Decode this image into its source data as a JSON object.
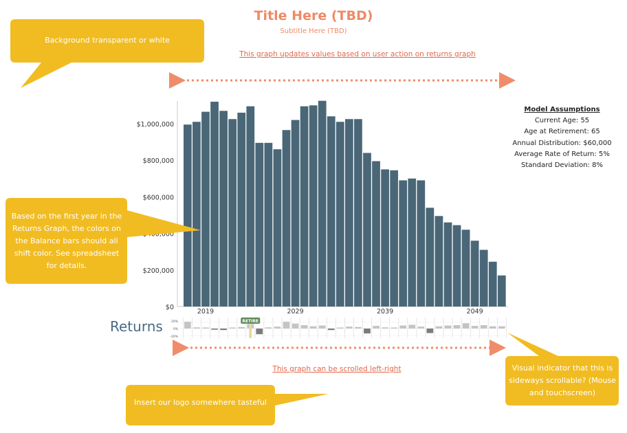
{
  "title": "Title Here (TBD)",
  "subtitle": "Subtitle Here (TBD)",
  "notes": {
    "top": "This graph updates values based on user action on returns graph",
    "bottom": "This graph can be scrolled left-right"
  },
  "assumptions": {
    "heading": "Model Assumptions",
    "lines": [
      "Current Age: 55",
      "Age at Retirement: 65",
      "Annual Distribution: $60,000",
      "Average Rate of Return: 5%",
      "Standard Deviation: 8%"
    ]
  },
  "returns_label": "Returns",
  "retire_tag": "RETIRE",
  "callouts": {
    "background": "Background transparent or white",
    "colors": "Based on the first year in the Returns Graph, the colors on the Balance bars should all shift color.  See spreadsheet for details.",
    "scroll": "Visual indicator that this is sideways scrollable? (Mouse and touchscreen)",
    "logo": "Insert our logo somewhere tasteful"
  },
  "colors": {
    "bar": "#4a6778",
    "accent": "#ee8a67",
    "callout": "#f1bc22",
    "return_pos": "#c4c4c4",
    "return_neg": "#7c7c7c",
    "retire": "#5e8a5a"
  },
  "chart_data": [
    {
      "type": "bar",
      "title": "",
      "xlabel": "",
      "ylabel": "",
      "ylim": [
        0,
        1150000
      ],
      "yticks": [
        0,
        200000,
        400000,
        600000,
        800000,
        1000000
      ],
      "ytick_labels": [
        "$0",
        "$200,000",
        "$400,000",
        "$600,000",
        "$800,000",
        "$1,000,000"
      ],
      "xtick_labels": [
        {
          "year": 2019,
          "label": "2019"
        },
        {
          "year": 2029,
          "label": "2029"
        },
        {
          "year": 2039,
          "label": "2039"
        },
        {
          "year": 2049,
          "label": "2049"
        }
      ],
      "x": [
        2017,
        2018,
        2019,
        2020,
        2021,
        2022,
        2023,
        2024,
        2025,
        2026,
        2027,
        2028,
        2029,
        2030,
        2031,
        2032,
        2033,
        2034,
        2035,
        2036,
        2037,
        2038,
        2039,
        2040,
        2041,
        2042,
        2043,
        2044,
        2045,
        2046,
        2047,
        2048,
        2049,
        2050,
        2051,
        2052
      ],
      "values": [
        995000,
        1010000,
        1065000,
        1120000,
        1070000,
        1025000,
        1060000,
        1095000,
        895000,
        895000,
        860000,
        965000,
        1020000,
        1095000,
        1100000,
        1125000,
        1040000,
        1010000,
        1025000,
        1025000,
        840000,
        795000,
        750000,
        745000,
        690000,
        700000,
        690000,
        540000,
        495000,
        460000,
        445000,
        420000,
        360000,
        310000,
        245000,
        170000
      ]
    },
    {
      "type": "bar",
      "title": "Returns",
      "yticks": [
        20,
        0,
        -20
      ],
      "ytick_labels": [
        "20%",
        "0%",
        "-20%"
      ],
      "x": [
        2017,
        2018,
        2019,
        2020,
        2021,
        2022,
        2023,
        2024,
        2025,
        2026,
        2027,
        2028,
        2029,
        2030,
        2031,
        2032,
        2033,
        2034,
        2035,
        2036,
        2037,
        2038,
        2039,
        2040,
        2041,
        2042,
        2043,
        2044,
        2045,
        2046,
        2047,
        2048,
        2049,
        2050,
        2051,
        2052
      ],
      "values": [
        18,
        3,
        2,
        -3,
        -4,
        2,
        4,
        12,
        -15,
        3,
        5,
        18,
        13,
        9,
        6,
        8,
        -4,
        2,
        5,
        4,
        -13,
        7,
        3,
        2,
        8,
        10,
        5,
        -12,
        6,
        8,
        9,
        14,
        7,
        9,
        6,
        6
      ],
      "retire_year": 2024
    }
  ]
}
